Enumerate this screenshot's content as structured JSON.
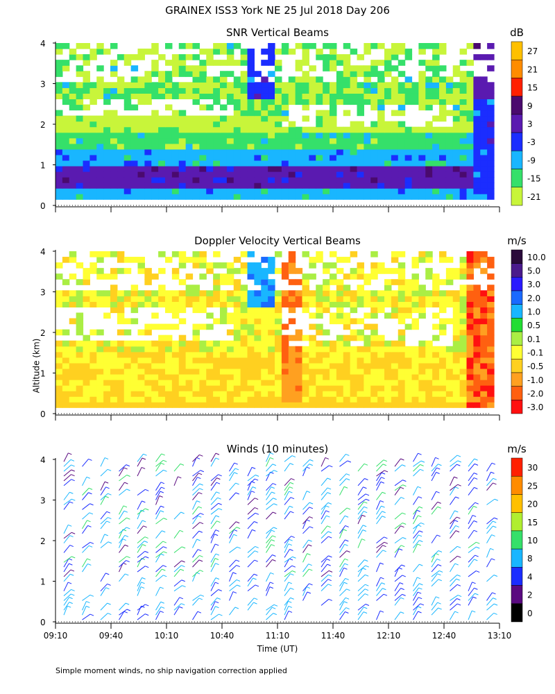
{
  "title": "GRAINEX ISS3 York NE  25 Jul 2018 Day 206",
  "y_axis_label": "Altitude (km)",
  "x_axis_label": "Time (UT)",
  "footnote": "Simple moment winds, no ship navigation correction applied",
  "chart_data": [
    {
      "type": "heatmap",
      "title": "SNR Vertical Beams",
      "unit": "dB",
      "ylabel": "Altitude (km)",
      "ylim": [
        0,
        4
      ],
      "yticks": [
        "0",
        "1",
        "2",
        "3",
        "4"
      ],
      "xlim": [
        "09:10",
        "13:10"
      ],
      "colorbar": {
        "labels": [
          "27",
          "21",
          "15",
          "9",
          "3",
          "-3",
          "-9",
          "-15",
          "-21"
        ],
        "colors": [
          "#ffc000",
          "#ff8c00",
          "#ff2000",
          "#4a0a6e",
          "#5a1ab0",
          "#1b2dff",
          "#19b6ff",
          "#35e06a",
          "#c8f53a"
        ]
      }
    },
    {
      "type": "heatmap",
      "title": "Doppler Velocity Vertical Beams",
      "unit": "m/s",
      "ylabel": "Altitude (km)",
      "ylim": [
        0,
        4
      ],
      "yticks": [
        "0",
        "1",
        "2",
        "3",
        "4"
      ],
      "xlim": [
        "09:10",
        "13:10"
      ],
      "colorbar": {
        "labels": [
          "10.0",
          "5.0",
          "3.0",
          "2.0",
          "1.0",
          "0.5",
          "0.1",
          "-0.1",
          "-0.5",
          "-1.0",
          "-2.0",
          "-3.0"
        ],
        "colors": [
          "#2a0a3a",
          "#4a1a8c",
          "#2a1aff",
          "#1a6aff",
          "#19b6ff",
          "#22dd33",
          "#aaee44",
          "#ffff33",
          "#ffd020",
          "#ffa020",
          "#ff6010",
          "#ff1010"
        ]
      }
    },
    {
      "type": "scatter",
      "title": "Winds (10 minutes)",
      "unit": "m/s",
      "ylabel": "Altitude (km)",
      "xlabel": "Time (UT)",
      "ylim": [
        0,
        4
      ],
      "yticks": [
        "0",
        "1",
        "2",
        "3",
        "4"
      ],
      "xticks": [
        "09:10",
        "09:40",
        "10:10",
        "10:40",
        "11:10",
        "11:40",
        "12:10",
        "12:40",
        "13:10"
      ],
      "colorbar": {
        "labels": [
          "30",
          "25",
          "20",
          "15",
          "10",
          "8",
          "4",
          "2",
          "0"
        ],
        "colors": [
          "#ff2000",
          "#ff8c00",
          "#ffc000",
          "#b0ee30",
          "#35e06a",
          "#19b6ff",
          "#1b2dff",
          "#5a0a80",
          "#000000"
        ]
      }
    }
  ]
}
